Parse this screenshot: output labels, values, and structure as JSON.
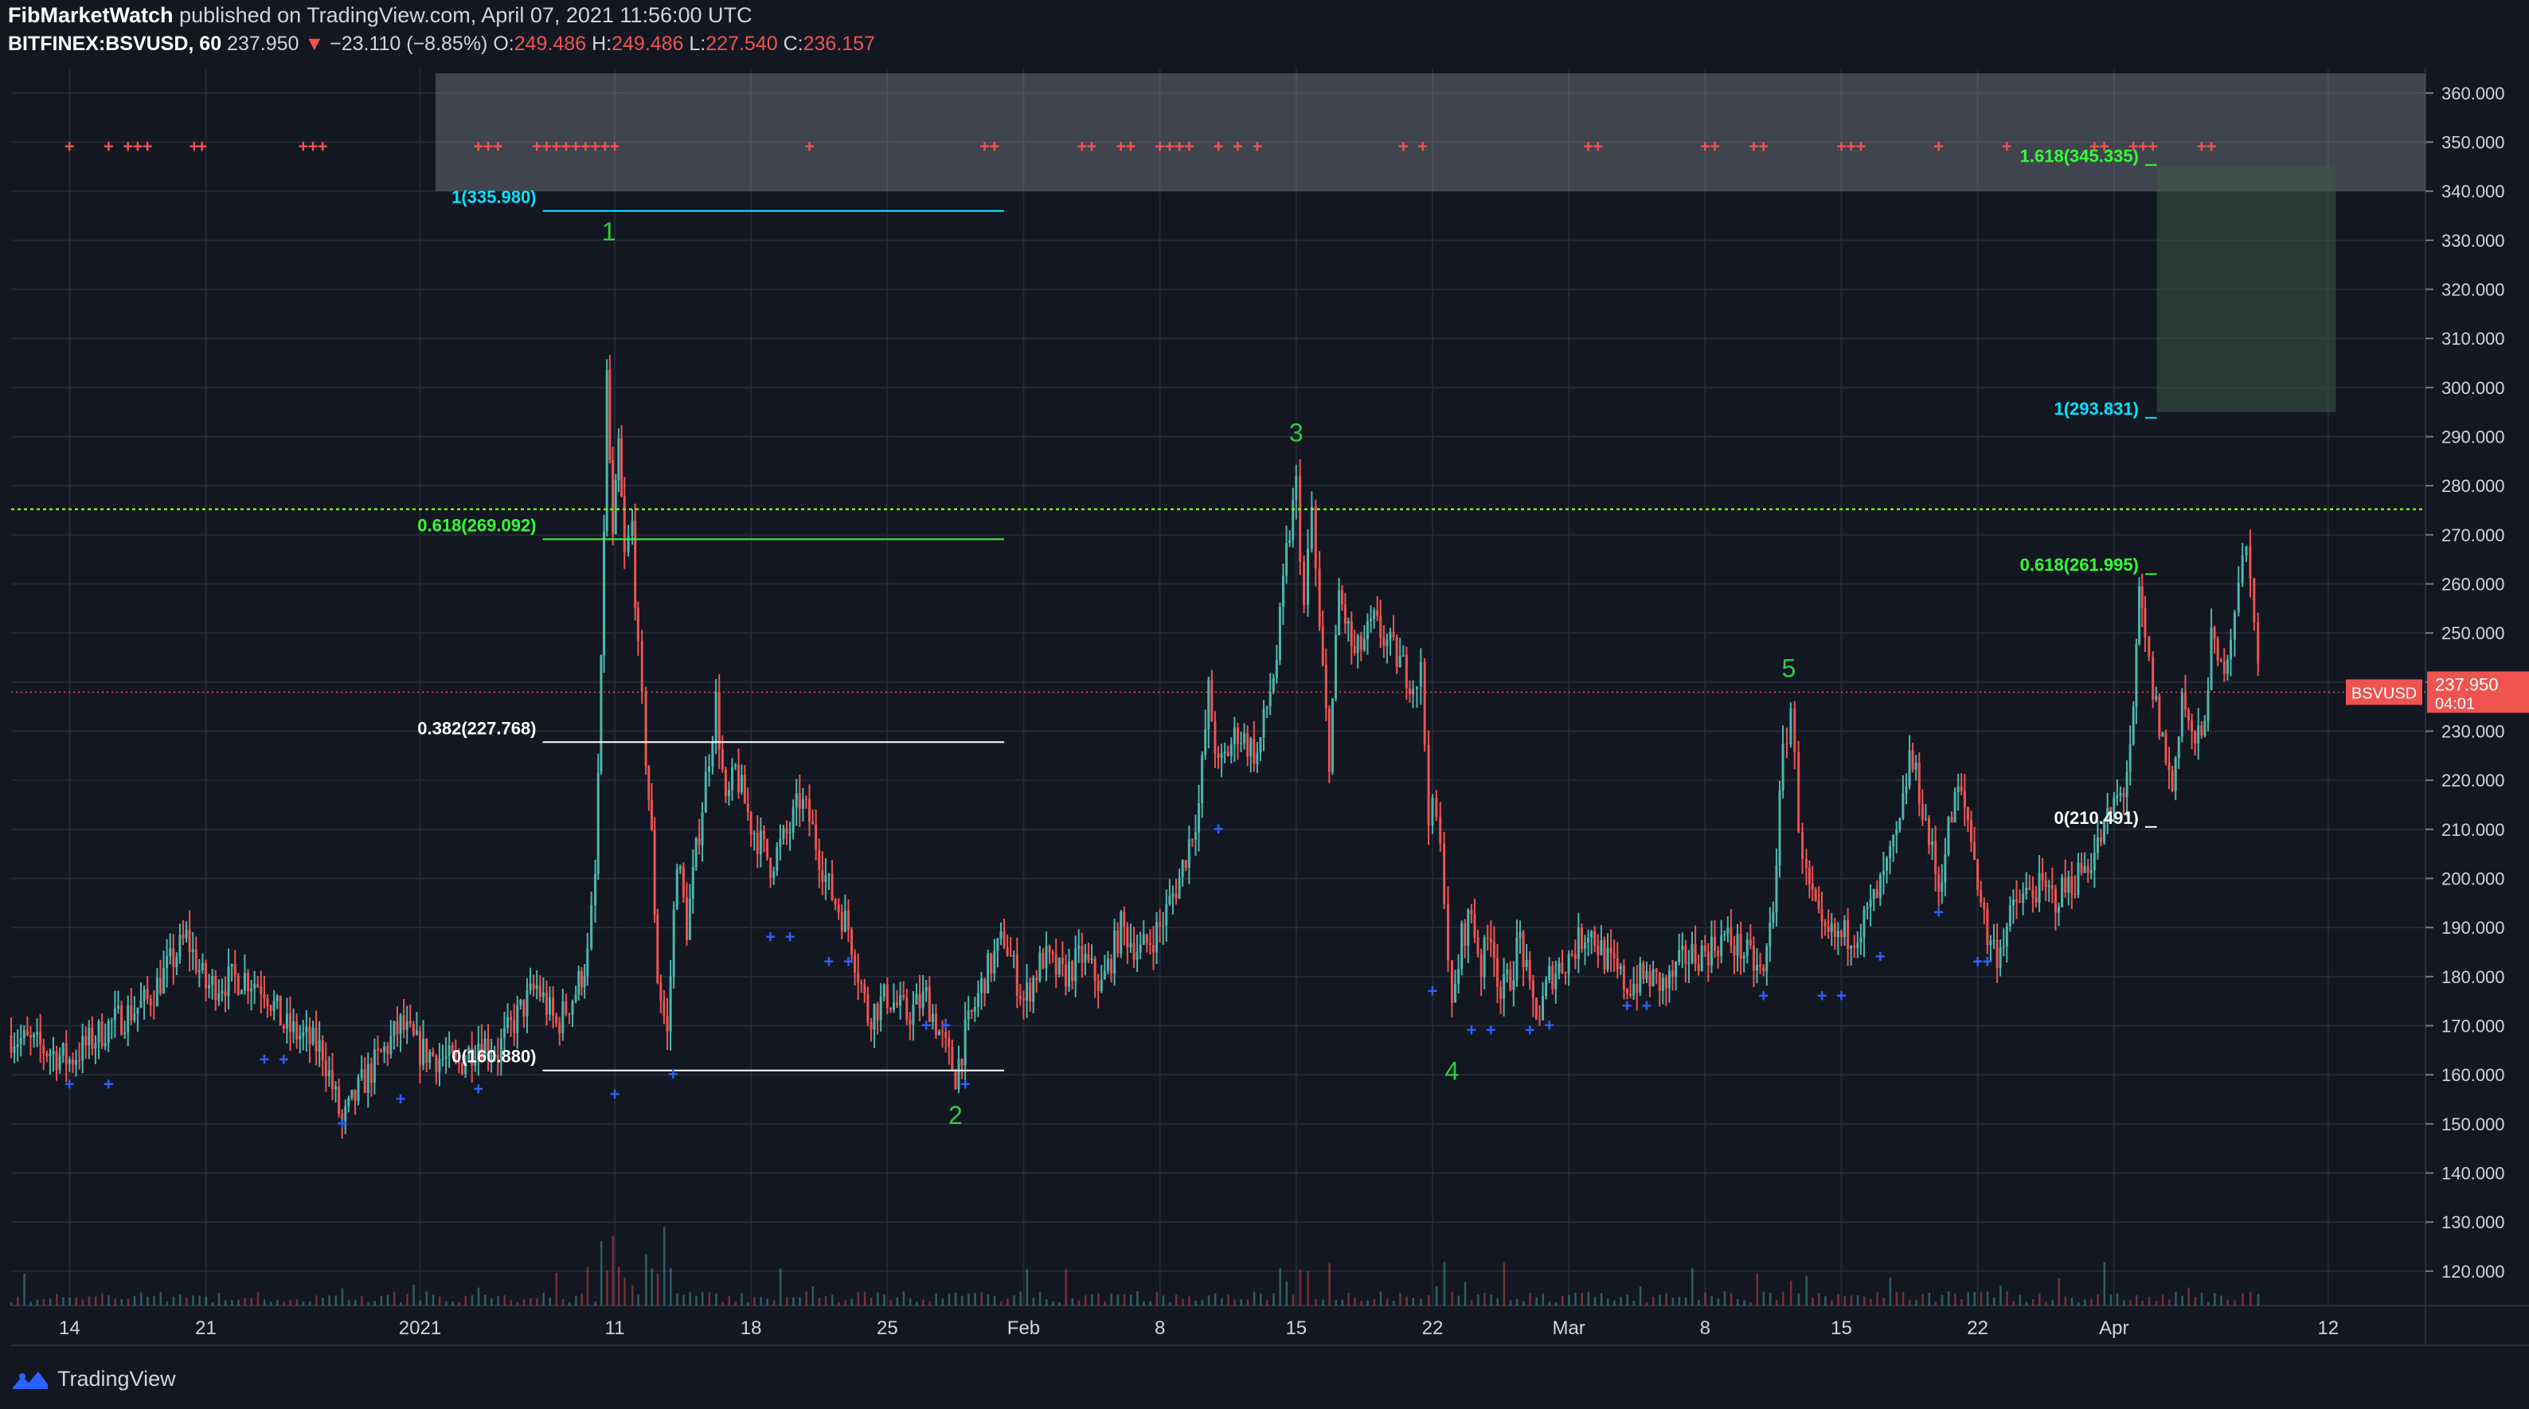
{
  "header": {
    "author": "FibMarketWatch",
    "published": "published on TradingView.com, April 07, 2021 11:56:00 UTC",
    "symbol": "BITFINEX:BSVUSD, 60",
    "last": "237.950",
    "change_arrow": "▼",
    "change": "−23.110 (−8.85%)",
    "o_label": "O:",
    "o": "249.486",
    "h_label": "H:",
    "h": "249.486",
    "l_label": "L:",
    "l": "227.540",
    "c_label": "C:",
    "c": "236.157"
  },
  "footer": {
    "brand": "TradingView"
  },
  "colors": {
    "background": "#131722",
    "grid": "#242836",
    "up": "#4db6ac",
    "down": "#ef5350",
    "fib_cyan": "#00e5ff",
    "fib_green": "#33ff33",
    "wave_label": "#2ecc40",
    "resistance_line": "#7cfc00",
    "zone": "#9598a1",
    "target_box": "#3d5a45",
    "price_tag": "#ef5350"
  },
  "chart_data": {
    "type": "candlestick",
    "symbol": "BSVUSD",
    "exchange": "BITFINEX",
    "interval": "60",
    "ylim": [
      113,
      365
    ],
    "y_ticks": [
      "360.000",
      "350.000",
      "340.000",
      "330.000",
      "320.000",
      "310.000",
      "300.000",
      "290.000",
      "280.000",
      "270.000",
      "260.000",
      "250.000",
      "240.000",
      "230.000",
      "220.000",
      "210.000",
      "200.000",
      "190.000",
      "180.000",
      "170.000",
      "160.000",
      "150.000",
      "140.000",
      "130.000",
      "120.000"
    ],
    "x_ticks": [
      "14",
      "21",
      "2021",
      "11",
      "18",
      "25",
      "Feb",
      "8",
      "15",
      "22",
      "Mar",
      "8",
      "15",
      "22",
      "Apr",
      "12"
    ],
    "x_ticks_day_index": [
      0,
      7,
      18,
      28,
      35,
      42,
      49,
      56,
      63,
      70,
      77,
      84,
      91,
      98,
      105,
      116
    ],
    "x_range_days": [
      -3,
      121
    ],
    "last_price": {
      "label": "BSVUSD",
      "value": "237.950",
      "countdown": "04:01",
      "y": 237.95
    },
    "price_path_day_values": [
      [
        -3,
        168
      ],
      [
        0,
        163
      ],
      [
        2,
        170
      ],
      [
        4,
        175
      ],
      [
        6,
        188
      ],
      [
        7,
        178
      ],
      [
        9,
        180
      ],
      [
        10,
        178
      ],
      [
        11,
        170
      ],
      [
        13,
        165
      ],
      [
        14,
        150
      ],
      [
        15,
        158
      ],
      [
        17,
        170
      ],
      [
        18,
        165
      ],
      [
        20,
        162
      ],
      [
        21,
        167
      ],
      [
        22,
        165
      ],
      [
        23,
        172
      ],
      [
        24,
        178
      ],
      [
        25,
        170
      ],
      [
        26,
        177
      ],
      [
        26.6,
        184
      ],
      [
        27,
        200
      ],
      [
        27.3,
        242
      ],
      [
        27.6,
        302
      ],
      [
        27.9,
        268
      ],
      [
        28.2,
        288
      ],
      [
        28.5,
        265
      ],
      [
        28.9,
        272
      ],
      [
        29.2,
        245
      ],
      [
        29.6,
        225
      ],
      [
        29.9,
        208
      ],
      [
        30.2,
        180
      ],
      [
        30.7,
        168
      ],
      [
        31.2,
        205
      ],
      [
        31.7,
        190
      ],
      [
        32.5,
        215
      ],
      [
        33.2,
        236
      ],
      [
        33.7,
        214
      ],
      [
        34.2,
        222
      ],
      [
        35,
        211
      ],
      [
        36,
        203
      ],
      [
        37,
        210
      ],
      [
        37.5,
        216
      ],
      [
        38,
        212
      ],
      [
        39,
        198
      ],
      [
        40,
        190
      ],
      [
        41,
        172
      ],
      [
        42,
        176
      ],
      [
        43,
        172
      ],
      [
        44,
        176
      ],
      [
        45,
        165
      ],
      [
        45.5,
        160
      ],
      [
        46,
        168
      ],
      [
        47,
        180
      ],
      [
        48,
        188
      ],
      [
        49,
        175
      ],
      [
        50,
        184
      ],
      [
        51,
        180
      ],
      [
        52,
        184
      ],
      [
        53,
        178
      ],
      [
        54,
        190
      ],
      [
        55,
        185
      ],
      [
        56,
        190
      ],
      [
        57,
        200
      ],
      [
        58,
        215
      ],
      [
        58.5,
        238
      ],
      [
        59,
        222
      ],
      [
        60,
        230
      ],
      [
        61,
        225
      ],
      [
        62,
        245
      ],
      [
        62.5,
        266
      ],
      [
        63,
        280
      ],
      [
        63.4,
        255
      ],
      [
        63.8,
        275
      ],
      [
        64.2,
        250
      ],
      [
        64.7,
        225
      ],
      [
        65.2,
        258
      ],
      [
        66,
        245
      ],
      [
        67,
        252
      ],
      [
        68,
        246
      ],
      [
        69,
        240
      ],
      [
        69.4,
        242
      ],
      [
        69.8,
        214
      ],
      [
        70.2,
        212
      ],
      [
        70.6,
        198
      ],
      [
        71,
        172
      ],
      [
        71.5,
        188
      ],
      [
        72,
        193
      ],
      [
        72.5,
        182
      ],
      [
        73,
        190
      ],
      [
        73.5,
        176
      ],
      [
        74,
        180
      ],
      [
        74.5,
        188
      ],
      [
        75,
        176
      ],
      [
        75.5,
        172
      ],
      [
        76,
        180
      ],
      [
        77,
        184
      ],
      [
        78,
        190
      ],
      [
        79,
        183
      ],
      [
        80,
        178
      ],
      [
        81,
        180
      ],
      [
        82,
        178
      ],
      [
        83,
        184
      ],
      [
        84,
        185
      ],
      [
        85,
        188
      ],
      [
        86,
        185
      ],
      [
        87,
        180
      ],
      [
        87.5,
        195
      ],
      [
        88,
        225
      ],
      [
        88.4,
        235
      ],
      [
        88.8,
        212
      ],
      [
        89.2,
        200
      ],
      [
        90,
        188
      ],
      [
        91,
        188
      ],
      [
        92,
        190
      ],
      [
        93,
        198
      ],
      [
        94,
        210
      ],
      [
        94.5,
        225
      ],
      [
        95,
        218
      ],
      [
        95.5,
        208
      ],
      [
        96,
        198
      ],
      [
        96.5,
        210
      ],
      [
        97,
        218
      ],
      [
        97.5,
        212
      ],
      [
        98,
        200
      ],
      [
        98.5,
        188
      ],
      [
        99,
        185
      ],
      [
        100,
        195
      ],
      [
        101,
        198
      ],
      [
        102,
        196
      ],
      [
        103,
        200
      ],
      [
        104,
        205
      ],
      [
        104.5,
        210
      ],
      [
        105,
        215
      ],
      [
        105.5,
        218
      ],
      [
        106,
        232
      ],
      [
        106.3,
        258
      ],
      [
        106.6,
        248
      ],
      [
        107,
        238
      ],
      [
        107.5,
        228
      ],
      [
        108,
        218
      ],
      [
        108.5,
        238
      ],
      [
        109,
        228
      ],
      [
        109.5,
        228
      ],
      [
        110,
        248
      ],
      [
        110.5,
        242
      ],
      [
        111,
        250
      ],
      [
        111.4,
        262
      ],
      [
        111.8,
        266
      ],
      [
        112.2,
        255
      ],
      [
        112.6,
        230
      ]
    ],
    "fib_levels_left": [
      {
        "label": "1(335.980)",
        "value": 335.98,
        "color": "#00e5ff"
      },
      {
        "label": "0.618(269.092)",
        "value": 269.092,
        "color": "#33ff33"
      },
      {
        "label": "0.382(227.768)",
        "value": 227.768,
        "color": "#ffffff"
      },
      {
        "label": "0(160.880)",
        "value": 160.88,
        "color": "#ffffff"
      }
    ],
    "fib_levels_right": [
      {
        "label": "1.618(345.335)",
        "value": 345.335,
        "color": "#33ff33"
      },
      {
        "label": "1(293.831)",
        "value": 293.831,
        "color": "#00e5ff"
      },
      {
        "label": "0.618(261.995)",
        "value": 261.995,
        "color": "#33ff33"
      },
      {
        "label": "0(210.491)",
        "value": 210.491,
        "color": "#ffffff"
      }
    ],
    "wave_labels": [
      {
        "label": "1",
        "day": 27.7,
        "value": 330
      },
      {
        "label": "2",
        "day": 45.5,
        "value": 150
      },
      {
        "label": "3",
        "day": 63,
        "value": 289
      },
      {
        "label": "4",
        "day": 71,
        "value": 159
      },
      {
        "label": "5",
        "day": 88.3,
        "value": 241
      }
    ],
    "resistance_level": 275.2,
    "overhead_zone": {
      "from_day": 18.8,
      "to_day": 121,
      "low": 340,
      "high": 364
    },
    "target_box": {
      "from_day": 107.2,
      "to_day": 116.4,
      "low": 295,
      "high": 345
    },
    "sell_marker_days": [
      0,
      2,
      3,
      3.5,
      4,
      6.4,
      6.8,
      12,
      12.5,
      13,
      21,
      21.5,
      22,
      24,
      24.5,
      25,
      25.5,
      26,
      26.5,
      27,
      27.5,
      28,
      38,
      47,
      47.5,
      52,
      52.5,
      54,
      54.5,
      56,
      56.5,
      57,
      57.5,
      59,
      60,
      61,
      68.5,
      69.5,
      78,
      78.5,
      84,
      84.5,
      86.5,
      87,
      91,
      91.5,
      92,
      96,
      99.5,
      104,
      104.5,
      106,
      106.5,
      107,
      109.5,
      110
    ],
    "sell_marker_value": 349,
    "buy_markers": [
      [
        0,
        158
      ],
      [
        2,
        158
      ],
      [
        10,
        163
      ],
      [
        11,
        163
      ],
      [
        14,
        150
      ],
      [
        17,
        155
      ],
      [
        21,
        157
      ],
      [
        28,
        156
      ],
      [
        31,
        160
      ],
      [
        36,
        188
      ],
      [
        37,
        188
      ],
      [
        39,
        183
      ],
      [
        40,
        183
      ],
      [
        44,
        170
      ],
      [
        45,
        170
      ],
      [
        46,
        158
      ],
      [
        59,
        210
      ],
      [
        70,
        177
      ],
      [
        72,
        169
      ],
      [
        73,
        169
      ],
      [
        75,
        169
      ],
      [
        76,
        170
      ],
      [
        80,
        174
      ],
      [
        81,
        174
      ],
      [
        87,
        176
      ],
      [
        90,
        176
      ],
      [
        91,
        176
      ],
      [
        93,
        184
      ],
      [
        96,
        193
      ],
      [
        98,
        183
      ],
      [
        98.5,
        183
      ]
    ],
    "volume_note": "volume histogram at bottom"
  }
}
